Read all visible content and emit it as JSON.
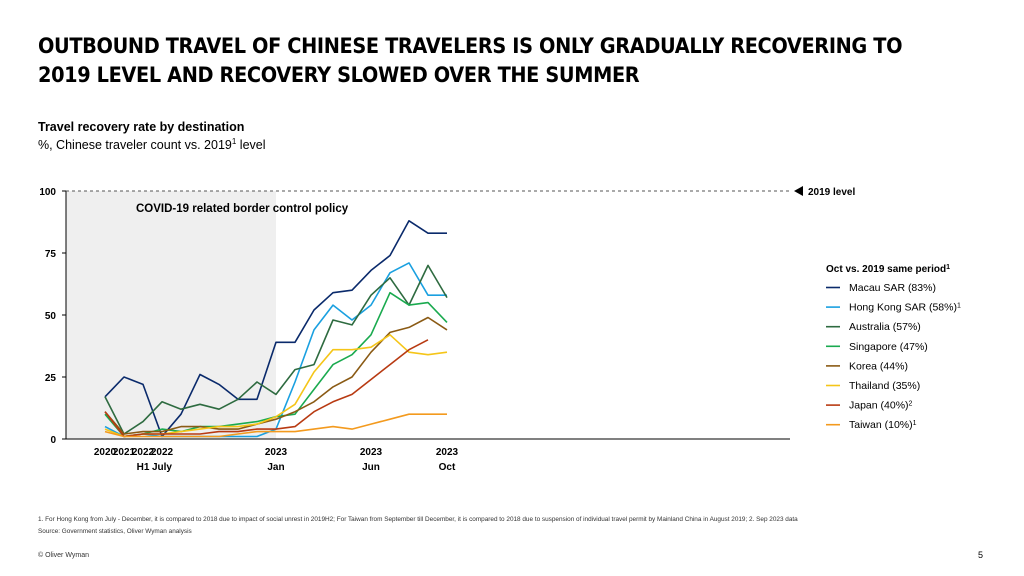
{
  "title": "OUTBOUND TRAVEL OF CHINESE TRAVELERS IS ONLY GRADUALLY RECOVERING TO 2019 LEVEL AND RECOVERY SLOWED OVER THE SUMMER",
  "subtitle": "Travel recovery rate by destination",
  "subtitle2_pre": "%, Chinese traveler count vs. 2019",
  "subtitle2_sup": "1",
  "subtitle2_post": " level",
  "footnote": "1. For Hong Kong from July - December, it is compared to 2018 due to impact of social unrest in 2019H2; For Taiwan from September till December, it is compared to 2018 due to suspension of individual travel permit by Mainland China in August 2019; 2. Sep 2023 data",
  "source": "Source: Government statistics, Oliver Wyman analysis",
  "copyright": "© Oliver Wyman",
  "page_number": "5",
  "colors": {
    "macau": "#0a2a6b",
    "hongkong": "#1aa0e0",
    "australia": "#2e6b40",
    "singapore": "#1aaa4f",
    "korea": "#8a5a14",
    "thailand": "#f5c518",
    "japan": "#b83a12",
    "taiwan": "#f39a1e",
    "shade": "#efefef",
    "ref": "#555555"
  },
  "chart_data": {
    "type": "line",
    "title": "Travel recovery rate by destination",
    "ylabel": "%, Chinese traveler count vs. 2019 level",
    "ylim": [
      0,
      100
    ],
    "yticks": [
      "0",
      "25",
      "50",
      "75",
      "100"
    ],
    "x_count": 23,
    "x_ticks": [
      {
        "i": 0,
        "label": "2020",
        "sub": ""
      },
      {
        "i": 1,
        "label": "2021",
        "sub": ""
      },
      {
        "i": 2,
        "label": "2022",
        "sub": "H1"
      },
      {
        "i": 3,
        "label": "2022",
        "sub": "July"
      },
      {
        "i": 9,
        "label": "2023",
        "sub": "Jan"
      },
      {
        "i": 14,
        "label": "2023",
        "sub": "Jun"
      },
      {
        "i": 18,
        "label": "2023",
        "sub": "Oct"
      }
    ],
    "reference_line": {
      "value": 100,
      "label": "2019 level"
    },
    "shaded_region": {
      "from_index": 0,
      "to_index": 9,
      "label": "COVID-19 related border control policy"
    },
    "legend_title": "Oct vs. 2019 same period",
    "legend_title_sup": "1",
    "series": [
      {
        "name": "Macau SAR (83%)",
        "key": "macau",
        "sup": "",
        "x": [
          0,
          1,
          2,
          3,
          4,
          5,
          6,
          7,
          8,
          9,
          10,
          11,
          12,
          13,
          14,
          15,
          16,
          17,
          18,
          19,
          20,
          21,
          22
        ],
        "values": [
          17,
          25,
          22,
          1,
          10,
          26,
          22,
          16,
          16,
          39,
          39,
          52,
          59,
          60,
          68,
          74,
          88,
          83,
          83,
          null,
          null,
          null,
          null
        ]
      },
      {
        "name": "Hong Kong SAR (58%)",
        "key": "hongkong",
        "sup": "1",
        "x": [
          0,
          1,
          2,
          3,
          4,
          5,
          6,
          7,
          8,
          9,
          10,
          11,
          12,
          13,
          14,
          15,
          16,
          17,
          18,
          19,
          20,
          21,
          22
        ],
        "values": [
          5,
          1,
          2,
          1,
          1,
          1,
          1,
          1,
          1,
          4,
          23,
          44,
          54,
          48,
          54,
          67,
          71,
          58,
          58,
          null,
          null,
          null,
          null
        ]
      },
      {
        "name": "Australia (57%)",
        "key": "australia",
        "sup": "",
        "x": [
          0,
          1,
          2,
          3,
          4,
          5,
          6,
          7,
          8,
          9,
          10,
          11,
          12,
          13,
          14,
          15,
          16,
          17,
          18,
          19,
          20,
          21,
          22
        ],
        "values": [
          17,
          2,
          7,
          15,
          12,
          14,
          12,
          16,
          23,
          18,
          28,
          30,
          48,
          46,
          58,
          65,
          54,
          70,
          57,
          null,
          null,
          null,
          null
        ]
      },
      {
        "name": "Singapore (47%)",
        "key": "singapore",
        "sup": "",
        "x": [
          0,
          1,
          2,
          3,
          4,
          5,
          6,
          7,
          8,
          9,
          10,
          11,
          12,
          13,
          14,
          15,
          16,
          17,
          18,
          19,
          20,
          21,
          22
        ],
        "values": [
          10,
          1,
          2,
          4,
          3,
          5,
          5,
          6,
          7,
          9,
          10,
          20,
          30,
          34,
          42,
          59,
          54,
          55,
          47,
          null,
          null,
          null,
          null
        ]
      },
      {
        "name": "Korea (44%)",
        "key": "korea",
        "sup": "",
        "x": [
          0,
          1,
          2,
          3,
          4,
          5,
          6,
          7,
          8,
          9,
          10,
          11,
          12,
          13,
          14,
          15,
          16,
          17,
          18,
          19,
          20,
          21,
          22
        ],
        "values": [
          11,
          2,
          3,
          3,
          5,
          5,
          4,
          4,
          6,
          8,
          11,
          15,
          21,
          25,
          35,
          43,
          45,
          49,
          44,
          null,
          null,
          null,
          null
        ]
      },
      {
        "name": "Thailand (35%)",
        "key": "thailand",
        "sup": "",
        "x": [
          0,
          1,
          2,
          3,
          4,
          5,
          6,
          7,
          8,
          9,
          10,
          11,
          12,
          13,
          14,
          15,
          16,
          17,
          18,
          19,
          20,
          21,
          22
        ],
        "values": [
          4,
          1,
          2,
          2,
          3,
          4,
          5,
          5,
          6,
          9,
          14,
          27,
          36,
          36,
          37,
          42,
          35,
          34,
          35,
          null,
          null,
          null,
          null
        ]
      },
      {
        "name": "Japan (40%)",
        "key": "japan",
        "sup": "2",
        "x": [
          0,
          1,
          2,
          3,
          4,
          5,
          6,
          7,
          8,
          9,
          10,
          11,
          12,
          13,
          14,
          15,
          16,
          17,
          18,
          19,
          20,
          21,
          22
        ],
        "values": [
          11,
          1,
          2,
          2,
          2,
          2,
          3,
          3,
          4,
          4,
          5,
          11,
          15,
          18,
          24,
          30,
          36,
          40,
          null,
          null,
          null,
          null,
          null
        ]
      },
      {
        "name": "Taiwan (10%)",
        "key": "taiwan",
        "sup": "1",
        "x": [
          0,
          1,
          2,
          3,
          4,
          5,
          6,
          7,
          8,
          9,
          10,
          11,
          12,
          13,
          14,
          15,
          16,
          17,
          18,
          19,
          20,
          21,
          22
        ],
        "values": [
          3,
          1,
          1,
          1,
          1,
          1,
          1,
          2,
          3,
          3,
          3,
          4,
          5,
          4,
          6,
          8,
          10,
          10,
          10,
          null,
          null,
          null,
          null
        ]
      }
    ]
  }
}
